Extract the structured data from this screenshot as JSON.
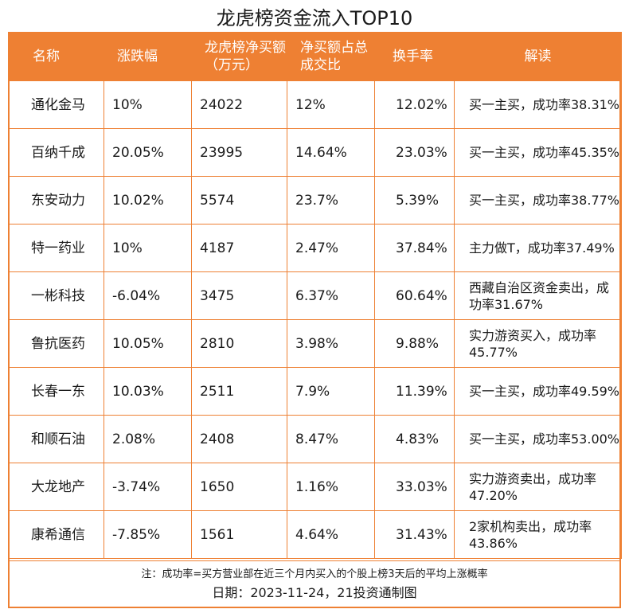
{
  "title": "龙虎榜资金流入TOP10",
  "columns": [
    "名称",
    "涨跌幅",
    "龙虎榜净买额（万元）",
    "净买额占总成交比",
    "换手率",
    "解读"
  ],
  "rows": [
    {
      "name": "通化金马",
      "change": "10%",
      "net_buy": "24022",
      "ratio": "12%",
      "turnover": "12.02%",
      "note": "买一主买，成功率38.31%"
    },
    {
      "name": "百纳千成",
      "change": "20.05%",
      "net_buy": "23995",
      "ratio": "14.64%",
      "turnover": "23.03%",
      "note": "买一主买，成功率45.35%"
    },
    {
      "name": "东安动力",
      "change": "10.02%",
      "net_buy": "5574",
      "ratio": "23.7%",
      "turnover": "5.39%",
      "note": "买一主买，成功率38.77%"
    },
    {
      "name": "特一药业",
      "change": "10%",
      "net_buy": "4187",
      "ratio": "2.47%",
      "turnover": "37.84%",
      "note": "主力做T，成功率37.49%"
    },
    {
      "name": "一彬科技",
      "change": "-6.04%",
      "net_buy": "3475",
      "ratio": "6.37%",
      "turnover": "60.64%",
      "note": "西藏自治区资金卖出，成功率31.67%"
    },
    {
      "name": "鲁抗医药",
      "change": "10.05%",
      "net_buy": "2810",
      "ratio": "3.98%",
      "turnover": "9.88%",
      "note": "实力游资买入，成功率45.77%"
    },
    {
      "name": "长春一东",
      "change": "10.03%",
      "net_buy": "2511",
      "ratio": "7.9%",
      "turnover": "11.39%",
      "note": "买一主买，成功率49.59%"
    },
    {
      "name": "和顺石油",
      "change": "2.08%",
      "net_buy": "2408",
      "ratio": "8.47%",
      "turnover": "4.83%",
      "note": "买一主买，成功率53.00%"
    },
    {
      "name": "大龙地产",
      "change": "-3.74%",
      "net_buy": "1650",
      "ratio": "1.16%",
      "turnover": "33.03%",
      "note": "实力游资卖出，成功率47.20%"
    },
    {
      "name": "康希通信",
      "change": "-7.85%",
      "net_buy": "1561",
      "ratio": "4.64%",
      "turnover": "31.43%",
      "note": "2家机构卖出，成功率43.86%"
    }
  ],
  "footnote": "注：成功率=买方营业部在近三个月内买入的个股上榜3天后的平均上涨概率",
  "date_line": "日期：2023-11-24，21投资通制图",
  "colors": {
    "accent": "#ee8033",
    "text": "#1a1a1a",
    "header_text": "#ffffff"
  }
}
